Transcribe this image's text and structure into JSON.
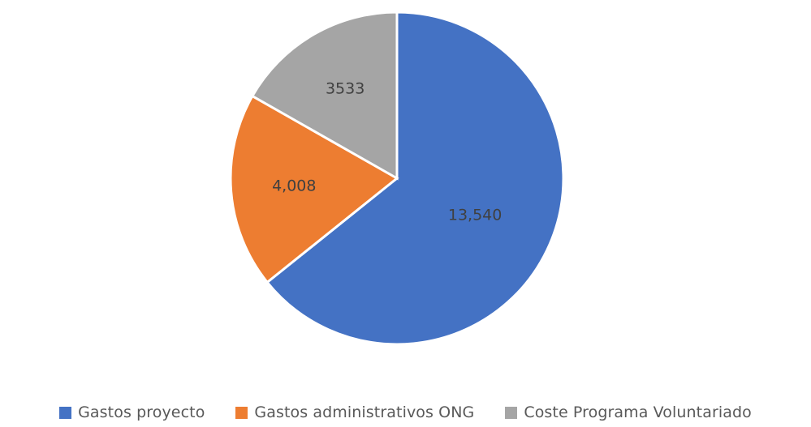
{
  "chart_data": {
    "type": "pie",
    "title": "",
    "categories": [
      "Gastos proyecto",
      "Gastos administrativos ONG",
      "Coste Programa Voluntariado"
    ],
    "values": [
      13540,
      4008,
      3533
    ],
    "data_labels": [
      "13,540",
      "4,008",
      "3533"
    ],
    "colors": [
      "#4472C4",
      "#ED7D31",
      "#A5A5A5"
    ],
    "start_angle_deg": 0,
    "direction": "clockwise",
    "legend_position": "bottom"
  }
}
